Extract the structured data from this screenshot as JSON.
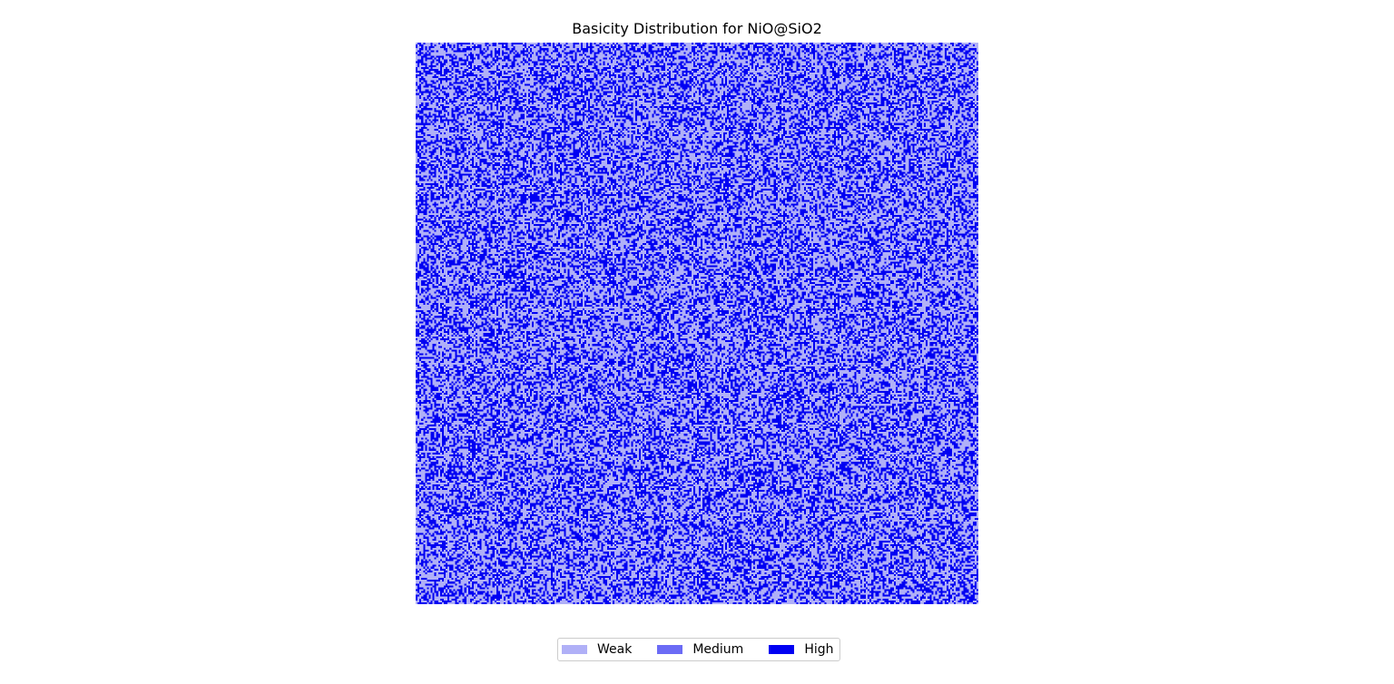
{
  "chart_data": {
    "type": "heatmap",
    "title": "Basicity Distribution for NiO@SiO2",
    "xlabel": "",
    "ylabel": "",
    "axes_visible": false,
    "grid": false,
    "legend_position": "bottom-center",
    "categories": [
      "Weak",
      "Medium",
      "High"
    ],
    "colors": {
      "Weak": "#b0b0f7",
      "Medium": "#6b6bf5",
      "High": "#0000f2"
    },
    "grid_size": [
      300,
      300
    ],
    "approx_proportions": {
      "Weak": 0.55,
      "Medium": 0.0,
      "High": 0.45
    }
  }
}
